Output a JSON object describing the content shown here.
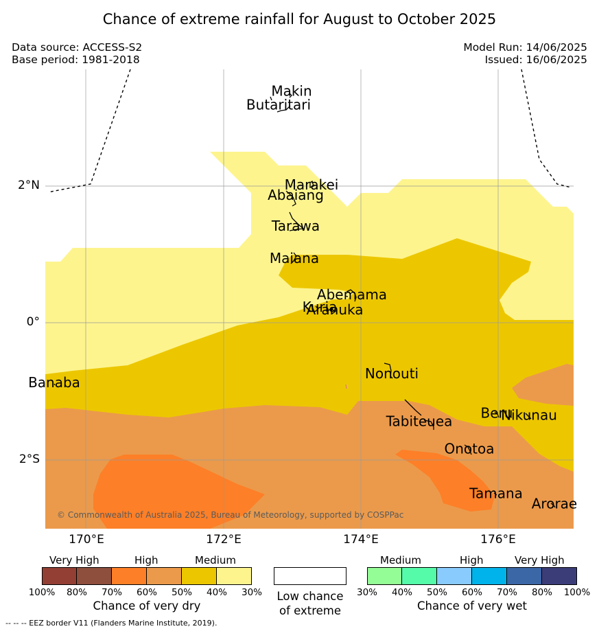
{
  "title": "Chance of extreme rainfall for August to October 2025",
  "meta": {
    "data_source": "Data source: ACCESS-S2",
    "base_period": "Base period: 1981-2018",
    "model_run": "Model Run: 14/06/2025",
    "issued": "Issued: 16/06/2025"
  },
  "map": {
    "lon_range": [
      169.4,
      177.1
    ],
    "lat_range": [
      -3.0,
      3.7
    ],
    "lon_ticks": [
      {
        "value": 170,
        "label": "170°E"
      },
      {
        "value": 172,
        "label": "172°E"
      },
      {
        "value": 174,
        "label": "174°E"
      },
      {
        "value": 176,
        "label": "176°E"
      }
    ],
    "lat_ticks": [
      {
        "value": 2,
        "label": "2°N"
      },
      {
        "value": 0,
        "label": "0°"
      },
      {
        "value": -2,
        "label": "2°S"
      }
    ],
    "islands": [
      {
        "name": "Makin",
        "lon": 172.99,
        "lat": 3.37
      },
      {
        "name": "Butaritari",
        "lon": 172.8,
        "lat": 3.17
      },
      {
        "name": "Marakei",
        "lon": 173.28,
        "lat": 2.0
      },
      {
        "name": "Abaiang",
        "lon": 173.05,
        "lat": 1.85
      },
      {
        "name": "Tarawa",
        "lon": 173.05,
        "lat": 1.4
      },
      {
        "name": "Maiana",
        "lon": 173.03,
        "lat": 0.93
      },
      {
        "name": "Abemama",
        "lon": 173.87,
        "lat": 0.4
      },
      {
        "name": "Kuria",
        "lon": 173.4,
        "lat": 0.22
      },
      {
        "name": "Aranuka",
        "lon": 173.62,
        "lat": 0.18
      },
      {
        "name": "Nonouti",
        "lon": 174.45,
        "lat": -0.75
      },
      {
        "name": "Banaba",
        "lon": 169.53,
        "lat": -0.88
      },
      {
        "name": "Tabiteuea",
        "lon": 174.85,
        "lat": -1.45
      },
      {
        "name": "Beru",
        "lon": 175.98,
        "lat": -1.33
      },
      {
        "name": "Nikunau",
        "lon": 176.45,
        "lat": -1.36
      },
      {
        "name": "Onotoa",
        "lon": 175.58,
        "lat": -1.85
      },
      {
        "name": "Tamana",
        "lon": 175.97,
        "lat": -2.5
      },
      {
        "name": "Arorae",
        "lon": 176.82,
        "lat": -2.65
      }
    ],
    "copyright": "© Commonwealth of Australia 2025, Bureau of Meteorology, supported by COSPPac"
  },
  "legend": {
    "dry": {
      "categories": [
        "Very High",
        "High",
        "Medium"
      ],
      "percent_labels": [
        "100%",
        "80%",
        "70%",
        "60%",
        "50%",
        "40%",
        "30%"
      ],
      "colors": [
        "#933f33",
        "#8e4f3c",
        "#fd7f27",
        "#eb9a4b",
        "#ecc700",
        "#fdf48e"
      ],
      "title": "Chance of very dry"
    },
    "low": {
      "title_line1": "Low chance",
      "title_line2": "of extreme",
      "color": "#ffffff"
    },
    "wet": {
      "categories": [
        "Medium",
        "High",
        "Very High"
      ],
      "percent_labels": [
        "30%",
        "40%",
        "50%",
        "60%",
        "70%",
        "80%",
        "100%"
      ],
      "colors": [
        "#95fd96",
        "#55fba9",
        "#89cbfd",
        "#00b3ea",
        "#3c67a6",
        "#3b3d79"
      ],
      "title": "Chance of very wet"
    }
  },
  "footnote": "--  --  -- EEZ border V11 (Flanders Marine Institute, 2019)."
}
